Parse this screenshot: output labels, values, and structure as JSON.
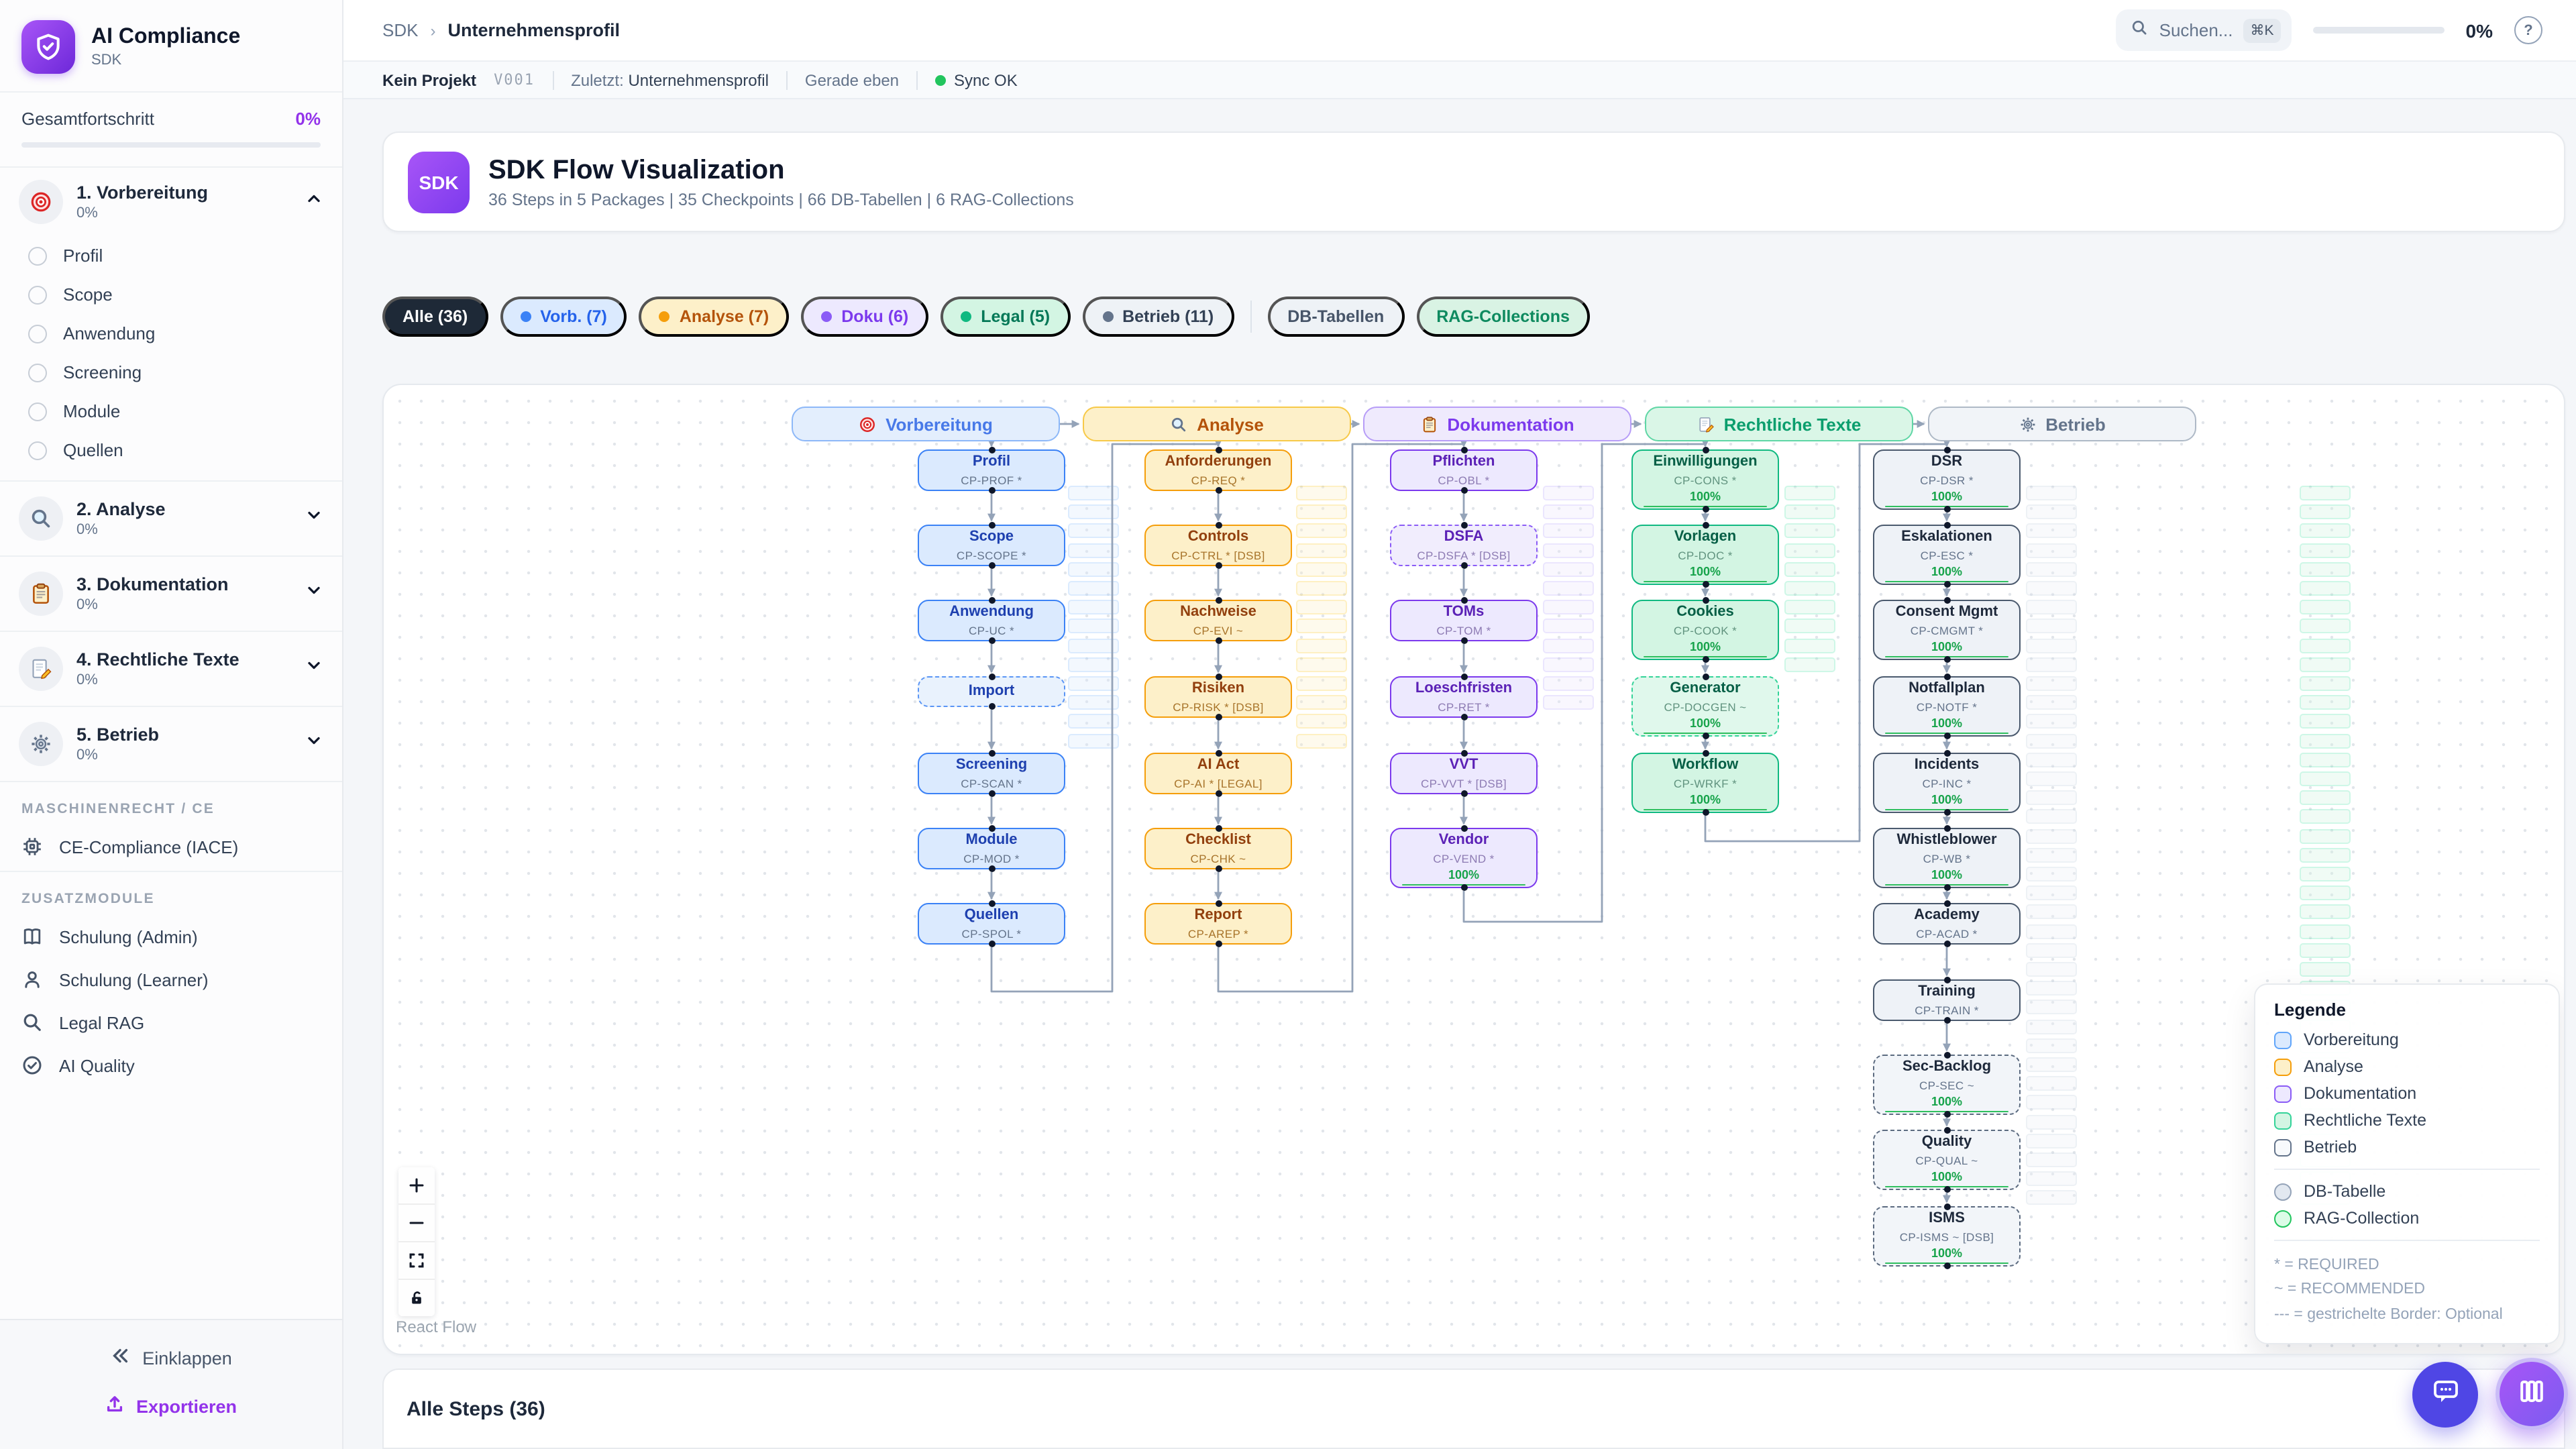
{
  "app": {
    "name": "AI Compliance",
    "subtitle": "SDK"
  },
  "sidebar": {
    "progress_label": "Gesamtfortschritt",
    "progress_value": "0%",
    "sections": [
      {
        "label": "1. Vorbereitung",
        "pct": "0%",
        "icon": "target",
        "expanded": true,
        "items": [
          "Profil",
          "Scope",
          "Anwendung",
          "Screening",
          "Module",
          "Quellen"
        ]
      },
      {
        "label": "2. Analyse",
        "pct": "0%",
        "icon": "magnifier",
        "expanded": false,
        "items": []
      },
      {
        "label": "3. Dokumentation",
        "pct": "0%",
        "icon": "clipboard",
        "expanded": false,
        "items": []
      },
      {
        "label": "4. Rechtliche Texte",
        "pct": "0%",
        "icon": "memo",
        "expanded": false,
        "items": []
      },
      {
        "label": "5. Betrieb",
        "pct": "0%",
        "icon": "gear",
        "expanded": false,
        "items": []
      }
    ],
    "groups": [
      {
        "title": "MASCHINENRECHT / CE",
        "items": [
          {
            "label": "CE-Compliance (IACE)",
            "icon": "chip"
          }
        ]
      },
      {
        "title": "ZUSATZMODULE",
        "items": [
          {
            "label": "Schulung (Admin)",
            "icon": "book"
          },
          {
            "label": "Schulung (Learner)",
            "icon": "user"
          },
          {
            "label": "Legal RAG",
            "icon": "search"
          },
          {
            "label": "AI Quality",
            "icon": "check-circle"
          }
        ]
      }
    ],
    "collapse_label": "Einklappen",
    "export_label": "Exportieren"
  },
  "header": {
    "breadcrumb_root": "SDK",
    "breadcrumb_current": "Unternehmensprofil",
    "search_placeholder": "Suchen...",
    "search_kbd": "⌘K",
    "progress": "0%",
    "help": "?"
  },
  "statusbar": {
    "project": "Kein Projekt",
    "version": "V001",
    "last_label": "Zuletzt:",
    "last_value": "Unternehmensprofil",
    "time": "Gerade eben",
    "sync": "Sync OK"
  },
  "hero": {
    "badge": "SDK",
    "title": "SDK Flow Visualization",
    "subtitle": "36 Steps in 5 Packages | 35 Checkpoints | 66 DB-Tabellen | 6 RAG-Collections"
  },
  "filters": [
    {
      "label": "Alle (36)",
      "cls": "chip-active"
    },
    {
      "label": "Vorb. (7)",
      "cls": "chip-blue",
      "dot": "#3b82f6"
    },
    {
      "label": "Analyse (7)",
      "cls": "chip-amber",
      "dot": "#f59e0b"
    },
    {
      "label": "Doku (6)",
      "cls": "chip-purple",
      "dot": "#8b5cf6"
    },
    {
      "label": "Legal (5)",
      "cls": "chip-green",
      "dot": "#10b981"
    },
    {
      "label": "Betrieb (11)",
      "cls": "chip-slate",
      "dot": "#64748b"
    },
    {
      "divider": true
    },
    {
      "label": "DB-Tabellen",
      "cls": "chip-plain"
    },
    {
      "label": "RAG-Collections",
      "cls": "chip-ragcol"
    }
  ],
  "flow": {
    "attribution": "React Flow",
    "columns": [
      {
        "id": "vorbereitung",
        "title": "Vorbereitung",
        "icon": "target",
        "color": "blue",
        "nodes": [
          {
            "t": "Profil",
            "c": "CP-PROF *"
          },
          {
            "t": "Scope",
            "c": "CP-SCOPE *"
          },
          {
            "t": "Anwendung",
            "c": "CP-UC *"
          },
          {
            "t": "Import",
            "c": "",
            "dashed": true,
            "small": true
          },
          {
            "t": "Screening",
            "c": "CP-SCAN *"
          },
          {
            "t": "Module",
            "c": "CP-MOD *"
          },
          {
            "t": "Quellen",
            "c": "CP-SPOL *"
          }
        ]
      },
      {
        "id": "analyse",
        "title": "Analyse",
        "icon": "magnifier",
        "color": "amber",
        "nodes": [
          {
            "t": "Anforderungen",
            "c": "CP-REQ *"
          },
          {
            "t": "Controls",
            "c": "CP-CTRL * [DSB]"
          },
          {
            "t": "Nachweise",
            "c": "CP-EVI ~"
          },
          {
            "t": "Risiken",
            "c": "CP-RISK * [DSB]"
          },
          {
            "t": "AI Act",
            "c": "CP-AI * [LEGAL]"
          },
          {
            "t": "Checklist",
            "c": "CP-CHK ~"
          },
          {
            "t": "Report",
            "c": "CP-AREP *"
          }
        ]
      },
      {
        "id": "dokumentation",
        "title": "Dokumentation",
        "icon": "clipboard",
        "color": "purple",
        "nodes": [
          {
            "t": "Pflichten",
            "c": "CP-OBL *"
          },
          {
            "t": "DSFA",
            "c": "CP-DSFA * [DSB]",
            "dashed": true
          },
          {
            "t": "TOMs",
            "c": "CP-TOM *"
          },
          {
            "t": "Loeschfristen",
            "c": "CP-RET *"
          },
          {
            "t": "VVT",
            "c": "CP-VVT * [DSB]"
          },
          {
            "t": "Vendor",
            "c": "CP-VEND *",
            "pct": "100%"
          }
        ]
      },
      {
        "id": "rechtliche-texte",
        "title": "Rechtliche Texte",
        "icon": "memo",
        "color": "green",
        "nodes": [
          {
            "t": "Einwilligungen",
            "c": "CP-CONS *",
            "pct": "100%"
          },
          {
            "t": "Vorlagen",
            "c": "CP-DOC *",
            "pct": "100%"
          },
          {
            "t": "Cookies",
            "c": "CP-COOK *",
            "pct": "100%"
          },
          {
            "t": "Generator",
            "c": "CP-DOCGEN ~",
            "pct": "100%",
            "dashed": true
          },
          {
            "t": "Workflow",
            "c": "CP-WRKF *",
            "pct": "100%"
          }
        ]
      },
      {
        "id": "betrieb",
        "title": "Betrieb",
        "icon": "gear",
        "color": "slate",
        "nodes": [
          {
            "t": "DSR",
            "c": "CP-DSR *",
            "pct": "100%"
          },
          {
            "t": "Eskalationen",
            "c": "CP-ESC *",
            "pct": "100%"
          },
          {
            "t": "Consent Mgmt",
            "c": "CP-CMGMT *",
            "pct": "100%"
          },
          {
            "t": "Notfallplan",
            "c": "CP-NOTF *",
            "pct": "100%"
          },
          {
            "t": "Incidents",
            "c": "CP-INC *",
            "pct": "100%"
          },
          {
            "t": "Whistleblower",
            "c": "CP-WB *",
            "pct": "100%"
          },
          {
            "t": "Academy",
            "c": "CP-ACAD *"
          },
          {
            "t": "Training",
            "c": "CP-TRAIN *"
          },
          {
            "t": "Sec-Backlog",
            "c": "CP-SEC ~",
            "pct": "100%",
            "dashed": true
          },
          {
            "t": "Quality",
            "c": "CP-QUAL ~",
            "pct": "100%",
            "dashed": true
          },
          {
            "t": "ISMS",
            "c": "CP-ISMS ~ [DSB]",
            "pct": "100%",
            "dashed": true
          }
        ]
      }
    ],
    "legend": {
      "title": "Legende",
      "packages": [
        {
          "label": "Vorbereitung",
          "border": "#60a5fa",
          "bg": "#dbeafe"
        },
        {
          "label": "Analyse",
          "border": "#f59e0b",
          "bg": "#fdf0c9"
        },
        {
          "label": "Dokumentation",
          "border": "#8b5cf6",
          "bg": "#ede9fe"
        },
        {
          "label": "Rechtliche Texte",
          "border": "#34d399",
          "bg": "#d3f5e3"
        },
        {
          "label": "Betrieb",
          "border": "#64748b",
          "bg": "#f8fafc"
        }
      ],
      "shapes": [
        {
          "label": "DB-Tabelle",
          "border": "#94a3b8",
          "bg": "#e2e8f0"
        },
        {
          "label": "RAG-Collection",
          "border": "#22c55e",
          "bg": "#dcfce7"
        }
      ],
      "notes": [
        "* = REQUIRED",
        "~ = RECOMMENDED",
        "--- = gestrichelte Border: Optional"
      ]
    }
  },
  "steps_panel": {
    "title": "Alle Steps (36)"
  }
}
